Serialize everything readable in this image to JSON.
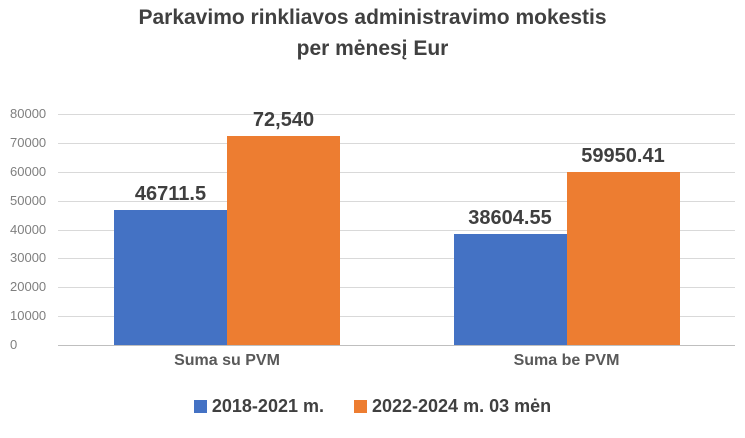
{
  "title": {
    "line1": "Parkavimo rinkliavos administravimo mokestis",
    "line2": "per mėnesį Eur"
  },
  "chart_data": {
    "type": "bar",
    "title": "Parkavimo rinkliavos administravimo mokestis per mėnesį Eur",
    "categories": [
      "Suma su PVM",
      "Suma be PVM"
    ],
    "series": [
      {
        "name": "2018-2021 m.",
        "color": "#4472c4",
        "values": [
          46711.5,
          38604.55
        ],
        "data_labels": [
          "46711.5",
          "38604.55"
        ]
      },
      {
        "name": "2022-2024 m. 03 mėn",
        "color": "#ed7d31",
        "values": [
          72540,
          59950.41
        ],
        "data_labels": [
          "72,540",
          "59950.41"
        ]
      }
    ],
    "ylim": [
      0,
      80000
    ],
    "ytick_interval": 10000,
    "yticks": [
      "0",
      "10000",
      "20000",
      "30000",
      "40000",
      "50000",
      "60000",
      "70000",
      "80000"
    ],
    "xlabel": "",
    "ylabel": "",
    "grid": true,
    "legend_position": "bottom"
  },
  "colors": {
    "series_blue": "#4472c4",
    "series_orange": "#ed7d31",
    "gridline": "#d9d9d9",
    "axis_line": "#bfbfbf",
    "title_text": "#404040",
    "tick_text": "#7f7f7f",
    "category_text": "#595959",
    "data_label_text": "#3f3f3f"
  }
}
